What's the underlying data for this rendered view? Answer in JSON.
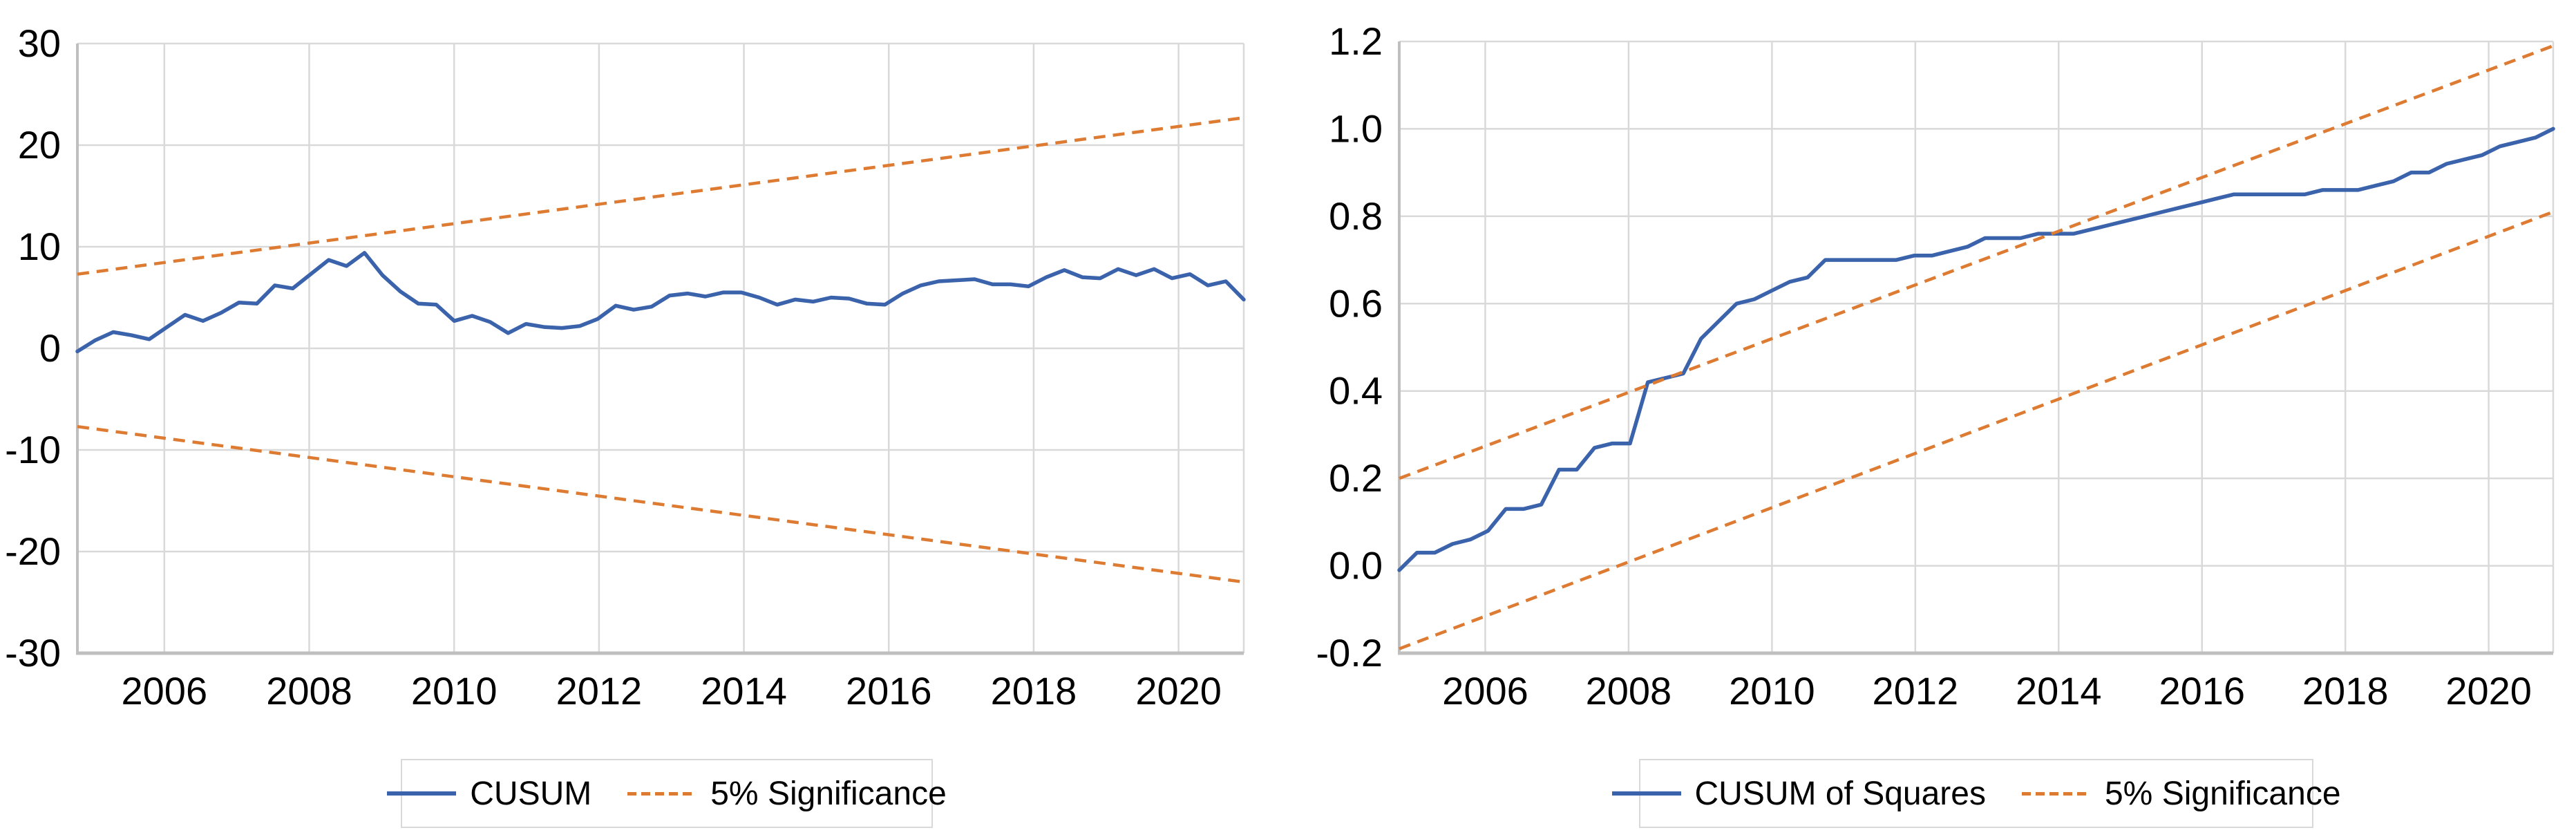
{
  "colors": {
    "series_blue": "#3A63AB",
    "significance_orange": "#DD7B32",
    "gridline": "#D9D9D9",
    "axis_line": "#BFBFBF",
    "tick_text": "#000000",
    "legend_border": "#D9D9D9"
  },
  "chart_data": [
    {
      "type": "line",
      "title": "",
      "grid": true,
      "legend_position": "bottom-center",
      "x": {
        "min": 2004.8,
        "max": 2020.9,
        "tick_values": [
          2006,
          2008,
          2010,
          2012,
          2014,
          2016,
          2018,
          2020
        ],
        "tick_labels": [
          "2006",
          "2008",
          "2010",
          "2012",
          "2014",
          "2016",
          "2018",
          "2020"
        ]
      },
      "y": {
        "min": -30,
        "max": 30,
        "tick_values": [
          30,
          20,
          10,
          0,
          -10,
          -20,
          -30
        ],
        "tick_labels": [
          "30",
          "20",
          "10",
          "0",
          "-10",
          "-20",
          "-30"
        ]
      },
      "series": [
        {
          "name": "CUSUM",
          "style": "solid",
          "color_key": "series_blue",
          "values": [
            -0.3,
            0.8,
            1.6,
            1.3,
            0.9,
            2.1,
            3.3,
            2.7,
            3.5,
            4.5,
            4.4,
            6.2,
            5.9,
            7.3,
            8.7,
            8.1,
            9.4,
            7.2,
            5.6,
            4.4,
            4.3,
            2.7,
            3.2,
            2.6,
            1.5,
            2.4,
            2.1,
            2.0,
            2.2,
            2.9,
            4.2,
            3.8,
            4.1,
            5.2,
            5.4,
            5.1,
            5.5,
            5.5,
            5.0,
            4.3,
            4.8,
            4.6,
            5.0,
            4.9,
            4.4,
            4.3,
            5.4,
            6.2,
            6.6,
            6.7,
            6.8,
            6.3,
            6.3,
            6.1,
            7.0,
            7.7,
            7.0,
            6.9,
            7.8,
            7.2,
            7.8,
            6.9,
            7.3,
            6.2,
            6.6,
            4.8
          ]
        },
        {
          "name": "5% Significance (upper)",
          "style": "dashed",
          "color_key": "significance_orange",
          "endpoints": [
            7.3,
            22.7
          ]
        },
        {
          "name": "5% Significance (lower)",
          "style": "dashed",
          "color_key": "significance_orange",
          "endpoints": [
            -7.7,
            -23.0
          ]
        }
      ],
      "legend": [
        {
          "label": "CUSUM",
          "swatch": "solid-blue"
        },
        {
          "label": "5% Significance",
          "swatch": "dashed-orange"
        }
      ]
    },
    {
      "type": "line",
      "title": "",
      "grid": true,
      "legend_position": "bottom-center",
      "x": {
        "min": 2004.8,
        "max": 2020.9,
        "tick_values": [
          2006,
          2008,
          2010,
          2012,
          2014,
          2016,
          2018,
          2020
        ],
        "tick_labels": [
          "2006",
          "2008",
          "2010",
          "2012",
          "2014",
          "2016",
          "2018",
          "2020"
        ]
      },
      "y": {
        "min": -0.2,
        "max": 1.2,
        "tick_values": [
          1.2,
          1.0,
          0.8,
          0.6,
          0.4,
          0.2,
          0.0,
          -0.2
        ],
        "tick_labels": [
          "1.2",
          "1.0",
          "0.8",
          "0.6",
          "0.4",
          "0.2",
          "0.0",
          "-0.2"
        ]
      },
      "series": [
        {
          "name": "CUSUM of Squares",
          "style": "solid",
          "color_key": "series_blue",
          "values": [
            -0.01,
            0.03,
            0.03,
            0.05,
            0.06,
            0.08,
            0.13,
            0.13,
            0.14,
            0.22,
            0.22,
            0.27,
            0.28,
            0.28,
            0.42,
            0.43,
            0.44,
            0.52,
            0.56,
            0.6,
            0.61,
            0.63,
            0.65,
            0.66,
            0.7,
            0.7,
            0.7,
            0.7,
            0.7,
            0.71,
            0.71,
            0.72,
            0.73,
            0.75,
            0.75,
            0.75,
            0.76,
            0.76,
            0.76,
            0.77,
            0.78,
            0.79,
            0.8,
            0.81,
            0.82,
            0.83,
            0.84,
            0.85,
            0.85,
            0.85,
            0.85,
            0.85,
            0.86,
            0.86,
            0.86,
            0.87,
            0.88,
            0.9,
            0.9,
            0.92,
            0.93,
            0.94,
            0.96,
            0.97,
            0.98,
            1.0
          ]
        },
        {
          "name": "5% Significance (upper)",
          "style": "dashed",
          "color_key": "significance_orange",
          "endpoints": [
            0.2,
            1.19
          ]
        },
        {
          "name": "5% Significance (lower)",
          "style": "dashed",
          "color_key": "significance_orange",
          "endpoints": [
            -0.19,
            0.81
          ]
        }
      ],
      "legend": [
        {
          "label": "CUSUM of Squares",
          "swatch": "solid-blue"
        },
        {
          "label": "5% Significance",
          "swatch": "dashed-orange"
        }
      ]
    }
  ]
}
